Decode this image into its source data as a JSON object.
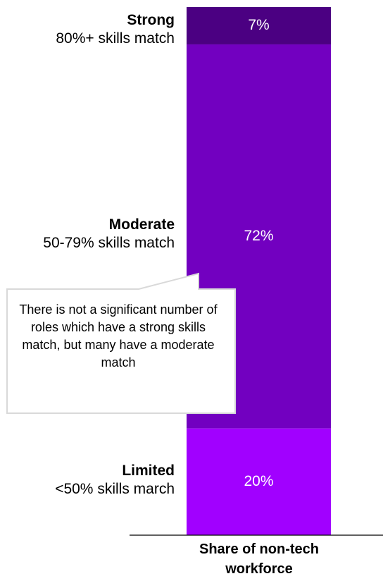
{
  "chart_data": {
    "type": "bar",
    "orientation": "stacked-vertical",
    "categories": [
      "Strong",
      "Moderate",
      "Limited"
    ],
    "descriptions": [
      "80%+ skills match",
      "50-79% skills match",
      "<50% skills march"
    ],
    "values": [
      7,
      72,
      20
    ],
    "value_labels": [
      "7%",
      "72%",
      "20%"
    ],
    "colors": [
      "#4b0082",
      "#7200c0",
      "#a100ff"
    ],
    "xlabel": "Share of non-tech workforce",
    "annotation": "There is not a significant number of roles which have a strong skills match, but many have a moderate match"
  }
}
